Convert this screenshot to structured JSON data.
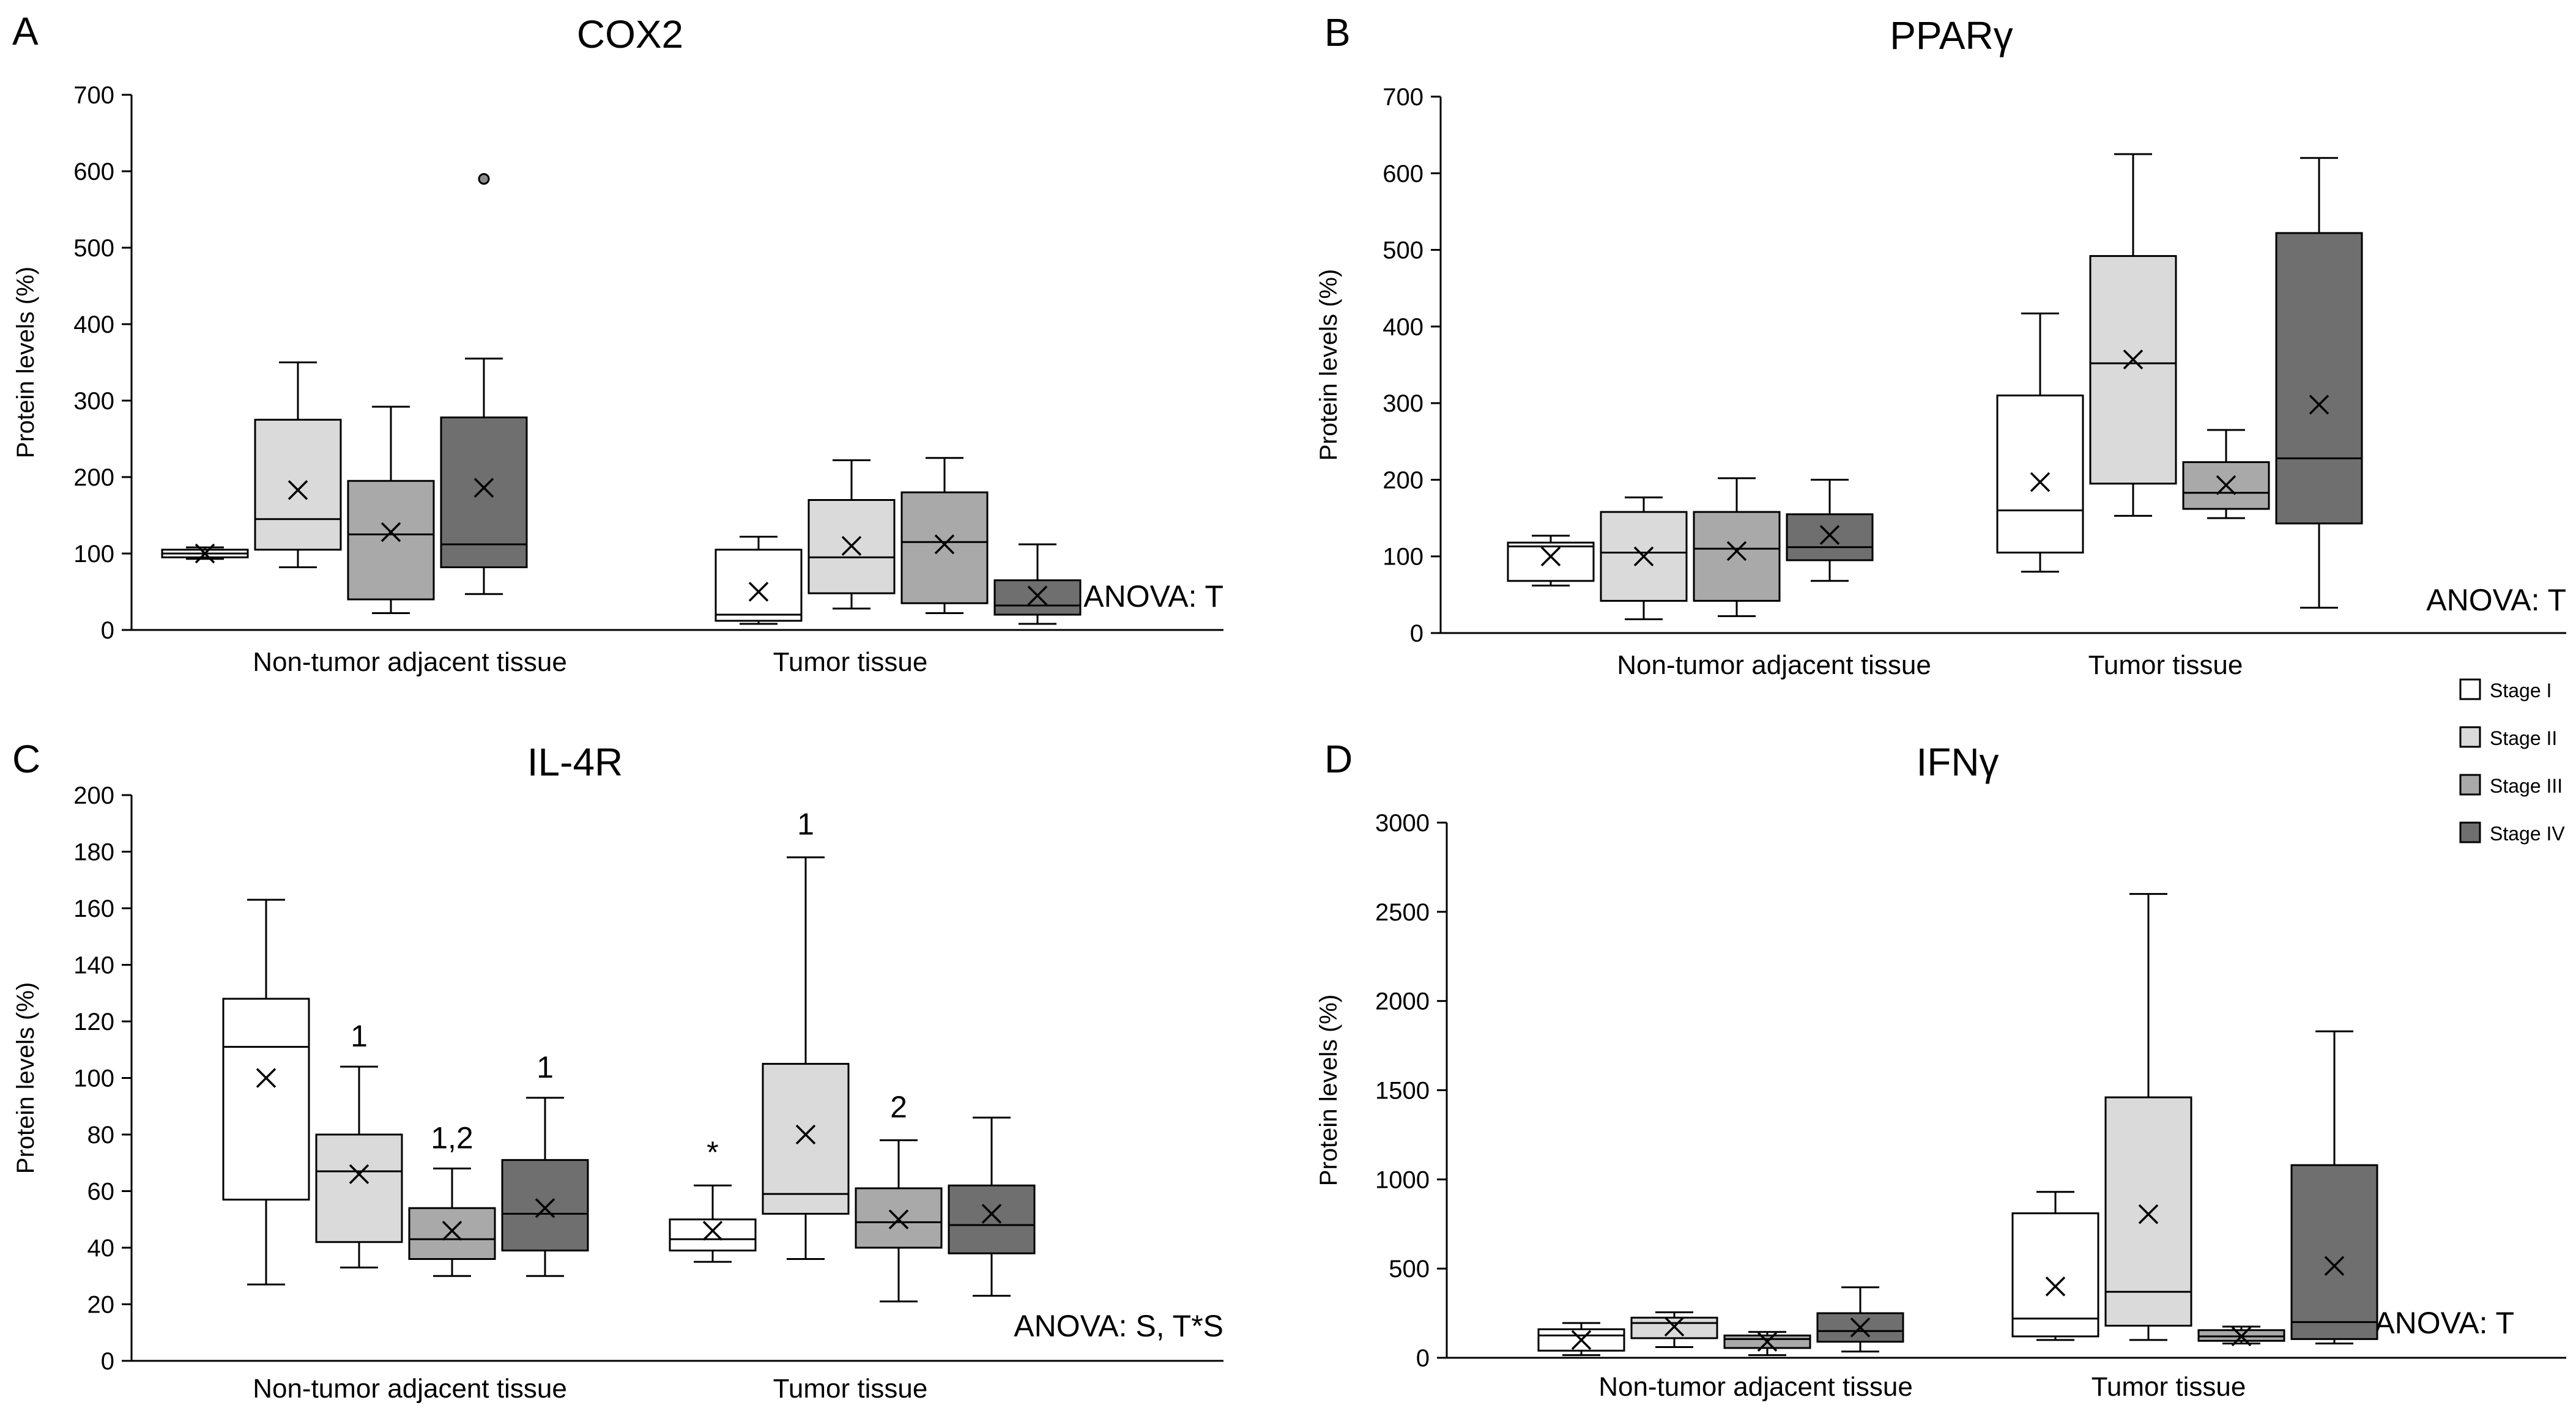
{
  "chart_data": [
    {
      "panel": "A",
      "type": "box",
      "title": "COX2",
      "ylabel": "Protein levels (%)",
      "ylim": [
        0,
        700
      ],
      "yticks": [
        0,
        100,
        200,
        300,
        400,
        500,
        600,
        700
      ],
      "groups": [
        "Non-tumor adjacent tissue",
        "Tumor tissue"
      ],
      "anova": "ANOVA: T",
      "boxes": [
        {
          "group": 0,
          "stage": 0,
          "min": 93,
          "q1": 95,
          "median": 100,
          "q3": 105,
          "max": 108,
          "mean": 100
        },
        {
          "group": 0,
          "stage": 1,
          "min": 82,
          "q1": 105,
          "median": 145,
          "q3": 275,
          "max": 350,
          "mean": 183
        },
        {
          "group": 0,
          "stage": 2,
          "min": 22,
          "q1": 40,
          "median": 125,
          "q3": 195,
          "max": 292,
          "mean": 128
        },
        {
          "group": 0,
          "stage": 3,
          "min": 47,
          "q1": 82,
          "median": 112,
          "q3": 278,
          "max": 355,
          "mean": 186,
          "outliers": [
            590
          ]
        },
        {
          "group": 1,
          "stage": 0,
          "min": 8,
          "q1": 12,
          "median": 20,
          "q3": 105,
          "max": 122,
          "mean": 50
        },
        {
          "group": 1,
          "stage": 1,
          "min": 28,
          "q1": 48,
          "median": 95,
          "q3": 170,
          "max": 222,
          "mean": 110
        },
        {
          "group": 1,
          "stage": 2,
          "min": 22,
          "q1": 35,
          "median": 115,
          "q3": 180,
          "max": 225,
          "mean": 112
        },
        {
          "group": 1,
          "stage": 3,
          "min": 8,
          "q1": 20,
          "median": 32,
          "q3": 65,
          "max": 112,
          "mean": 45
        }
      ],
      "annotations": []
    },
    {
      "panel": "B",
      "type": "box",
      "title": "PPARγ",
      "ylabel": "Protein levels (%)",
      "ylim": [
        0,
        700
      ],
      "yticks": [
        0,
        100,
        200,
        300,
        400,
        500,
        600,
        700
      ],
      "groups": [
        "Non-tumor adjacent tissue",
        "Tumor tissue"
      ],
      "anova": "ANOVA: T",
      "boxes": [
        {
          "group": 0,
          "stage": 0,
          "min": 62,
          "q1": 68,
          "median": 113,
          "q3": 118,
          "max": 127,
          "mean": 100
        },
        {
          "group": 0,
          "stage": 1,
          "min": 18,
          "q1": 42,
          "median": 105,
          "q3": 158,
          "max": 177,
          "mean": 100
        },
        {
          "group": 0,
          "stage": 2,
          "min": 22,
          "q1": 42,
          "median": 110,
          "q3": 158,
          "max": 202,
          "mean": 107
        },
        {
          "group": 0,
          "stage": 3,
          "min": 68,
          "q1": 95,
          "median": 112,
          "q3": 155,
          "max": 200,
          "mean": 128
        },
        {
          "group": 1,
          "stage": 0,
          "min": 80,
          "q1": 105,
          "median": 160,
          "q3": 310,
          "max": 417,
          "mean": 197
        },
        {
          "group": 1,
          "stage": 1,
          "min": 153,
          "q1": 195,
          "median": 352,
          "q3": 492,
          "max": 625,
          "mean": 357
        },
        {
          "group": 1,
          "stage": 2,
          "min": 150,
          "q1": 162,
          "median": 183,
          "q3": 223,
          "max": 265,
          "mean": 193
        },
        {
          "group": 1,
          "stage": 3,
          "min": 33,
          "q1": 143,
          "median": 228,
          "q3": 522,
          "max": 620,
          "mean": 298
        }
      ],
      "annotations": []
    },
    {
      "panel": "C",
      "type": "box",
      "title": "IL-4R",
      "ylabel": "Protein levels (%)",
      "ylim": [
        0,
        200
      ],
      "yticks": [
        0,
        20,
        40,
        60,
        80,
        100,
        120,
        140,
        160,
        180,
        200
      ],
      "groups": [
        "Non-tumor adjacent tissue",
        "Tumor tissue"
      ],
      "anova": "ANOVA: S, T*S",
      "boxes": [
        {
          "group": 0,
          "stage": 0,
          "min": 27,
          "q1": 57,
          "median": 111,
          "q3": 128,
          "max": 163,
          "mean": 100
        },
        {
          "group": 0,
          "stage": 1,
          "min": 33,
          "q1": 42,
          "median": 67,
          "q3": 80,
          "max": 104,
          "mean": 66
        },
        {
          "group": 0,
          "stage": 2,
          "min": 30,
          "q1": 36,
          "median": 43,
          "q3": 54,
          "max": 68,
          "mean": 46
        },
        {
          "group": 0,
          "stage": 3,
          "min": 30,
          "q1": 39,
          "median": 52,
          "q3": 71,
          "max": 93,
          "mean": 54
        },
        {
          "group": 1,
          "stage": 0,
          "min": 35,
          "q1": 39,
          "median": 43,
          "q3": 50,
          "max": 62,
          "mean": 46
        },
        {
          "group": 1,
          "stage": 1,
          "min": 36,
          "q1": 52,
          "median": 59,
          "q3": 105,
          "max": 178,
          "mean": 80
        },
        {
          "group": 1,
          "stage": 2,
          "min": 21,
          "q1": 40,
          "median": 49,
          "q3": 61,
          "max": 78,
          "mean": 50
        },
        {
          "group": 1,
          "stage": 3,
          "min": 23,
          "q1": 38,
          "median": 48,
          "q3": 62,
          "max": 86,
          "mean": 52
        }
      ],
      "annotations": [
        {
          "group": 0,
          "stage": 1,
          "text": "1",
          "y": 115
        },
        {
          "group": 0,
          "stage": 2,
          "text": "1,2",
          "y": 79
        },
        {
          "group": 0,
          "stage": 3,
          "text": "1",
          "y": 104
        },
        {
          "group": 1,
          "stage": 0,
          "text": "*",
          "y": 74
        },
        {
          "group": 1,
          "stage": 1,
          "text": "1",
          "y": 190
        },
        {
          "group": 1,
          "stage": 2,
          "text": "2",
          "y": 90
        }
      ]
    },
    {
      "panel": "D",
      "type": "box",
      "title": "IFNγ",
      "ylabel": "Protein levels (%)",
      "ylim": [
        0,
        3000
      ],
      "yticks": [
        0,
        500,
        1000,
        1500,
        2000,
        2500,
        3000
      ],
      "groups": [
        "Non-tumor adjacent tissue",
        "Tumor tissue"
      ],
      "anova": "ANOVA: T",
      "boxes": [
        {
          "group": 0,
          "stage": 0,
          "min": 15,
          "q1": 40,
          "median": 125,
          "q3": 160,
          "max": 195,
          "mean": 100
        },
        {
          "group": 0,
          "stage": 1,
          "min": 60,
          "q1": 110,
          "median": 195,
          "q3": 225,
          "max": 255,
          "mean": 175
        },
        {
          "group": 0,
          "stage": 2,
          "min": 15,
          "q1": 55,
          "median": 105,
          "q3": 125,
          "max": 145,
          "mean": 90
        },
        {
          "group": 0,
          "stage": 3,
          "min": 35,
          "q1": 90,
          "median": 150,
          "q3": 250,
          "max": 395,
          "mean": 170
        },
        {
          "group": 1,
          "stage": 0,
          "min": 100,
          "q1": 120,
          "median": 220,
          "q3": 810,
          "max": 930,
          "mean": 400
        },
        {
          "group": 1,
          "stage": 1,
          "min": 100,
          "q1": 180,
          "median": 370,
          "q3": 1460,
          "max": 2600,
          "mean": 805
        },
        {
          "group": 1,
          "stage": 2,
          "min": 80,
          "q1": 95,
          "median": 120,
          "q3": 155,
          "max": 175,
          "mean": 120
        },
        {
          "group": 1,
          "stage": 3,
          "min": 80,
          "q1": 105,
          "median": 200,
          "q3": 1080,
          "max": 1830,
          "mean": 515
        }
      ],
      "annotations": []
    }
  ],
  "legend": [
    {
      "label": "Stage I",
      "color": "#ffffff"
    },
    {
      "label": "Stage II",
      "color": "#dadada"
    },
    {
      "label": "Stage III",
      "color": "#a9a9a9"
    },
    {
      "label": "Stage IV",
      "color": "#6f6f6f"
    }
  ]
}
